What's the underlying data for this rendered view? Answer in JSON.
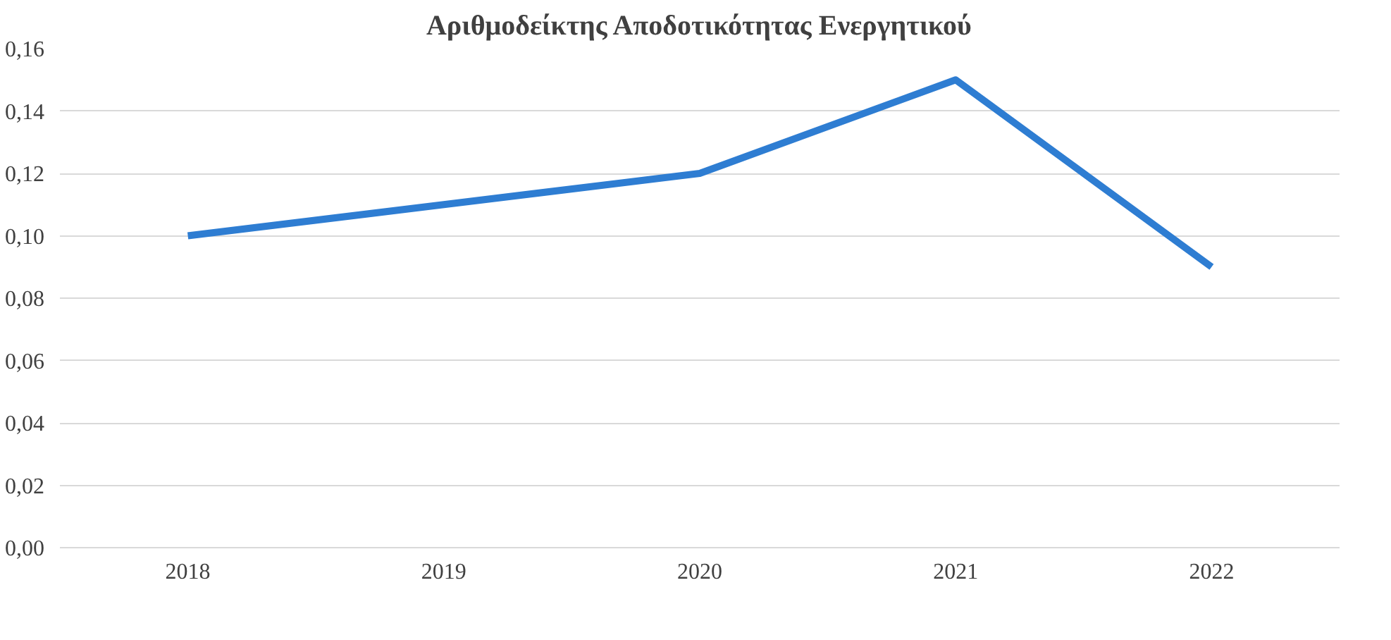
{
  "chart_data": {
    "type": "line",
    "title": "Αριθμοδείκτης Αποδοτικότητας Ενεργητικού",
    "categories": [
      "2018",
      "2019",
      "2020",
      "2021",
      "2022"
    ],
    "series": [
      {
        "color": "#2e7dd2",
        "values": [
          0.1,
          0.11,
          0.12,
          0.15,
          0.09
        ]
      }
    ],
    "ylim": [
      0,
      0.16
    ],
    "yticks": [
      {
        "value": 0,
        "label": "0,00"
      },
      {
        "value": 0.02,
        "label": "0,02"
      },
      {
        "value": 0.04,
        "label": "0,04"
      },
      {
        "value": 0.06,
        "label": "0,06"
      },
      {
        "value": 0.08,
        "label": "0,08"
      },
      {
        "value": 0.1,
        "label": "0,10"
      },
      {
        "value": 0.12,
        "label": "0,12"
      },
      {
        "value": 0.14,
        "label": "0,14"
      },
      {
        "value": 0.16,
        "label": "0,16"
      }
    ],
    "grid": "y",
    "marker": "none",
    "line_style": "solid"
  }
}
